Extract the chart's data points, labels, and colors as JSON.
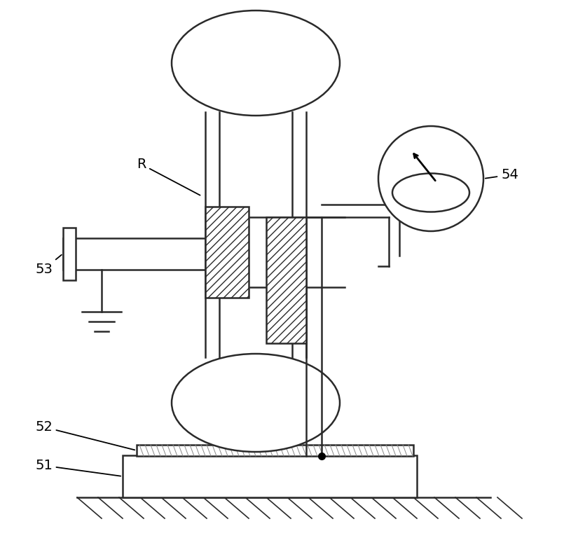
{
  "bg_color": "#ffffff",
  "line_color": "#2a2a2a",
  "label_53": "53",
  "label_52": "52",
  "label_51": "51",
  "label_54": "54",
  "label_R": "R",
  "figsize": [
    8.05,
    7.68
  ],
  "dpi": 100
}
